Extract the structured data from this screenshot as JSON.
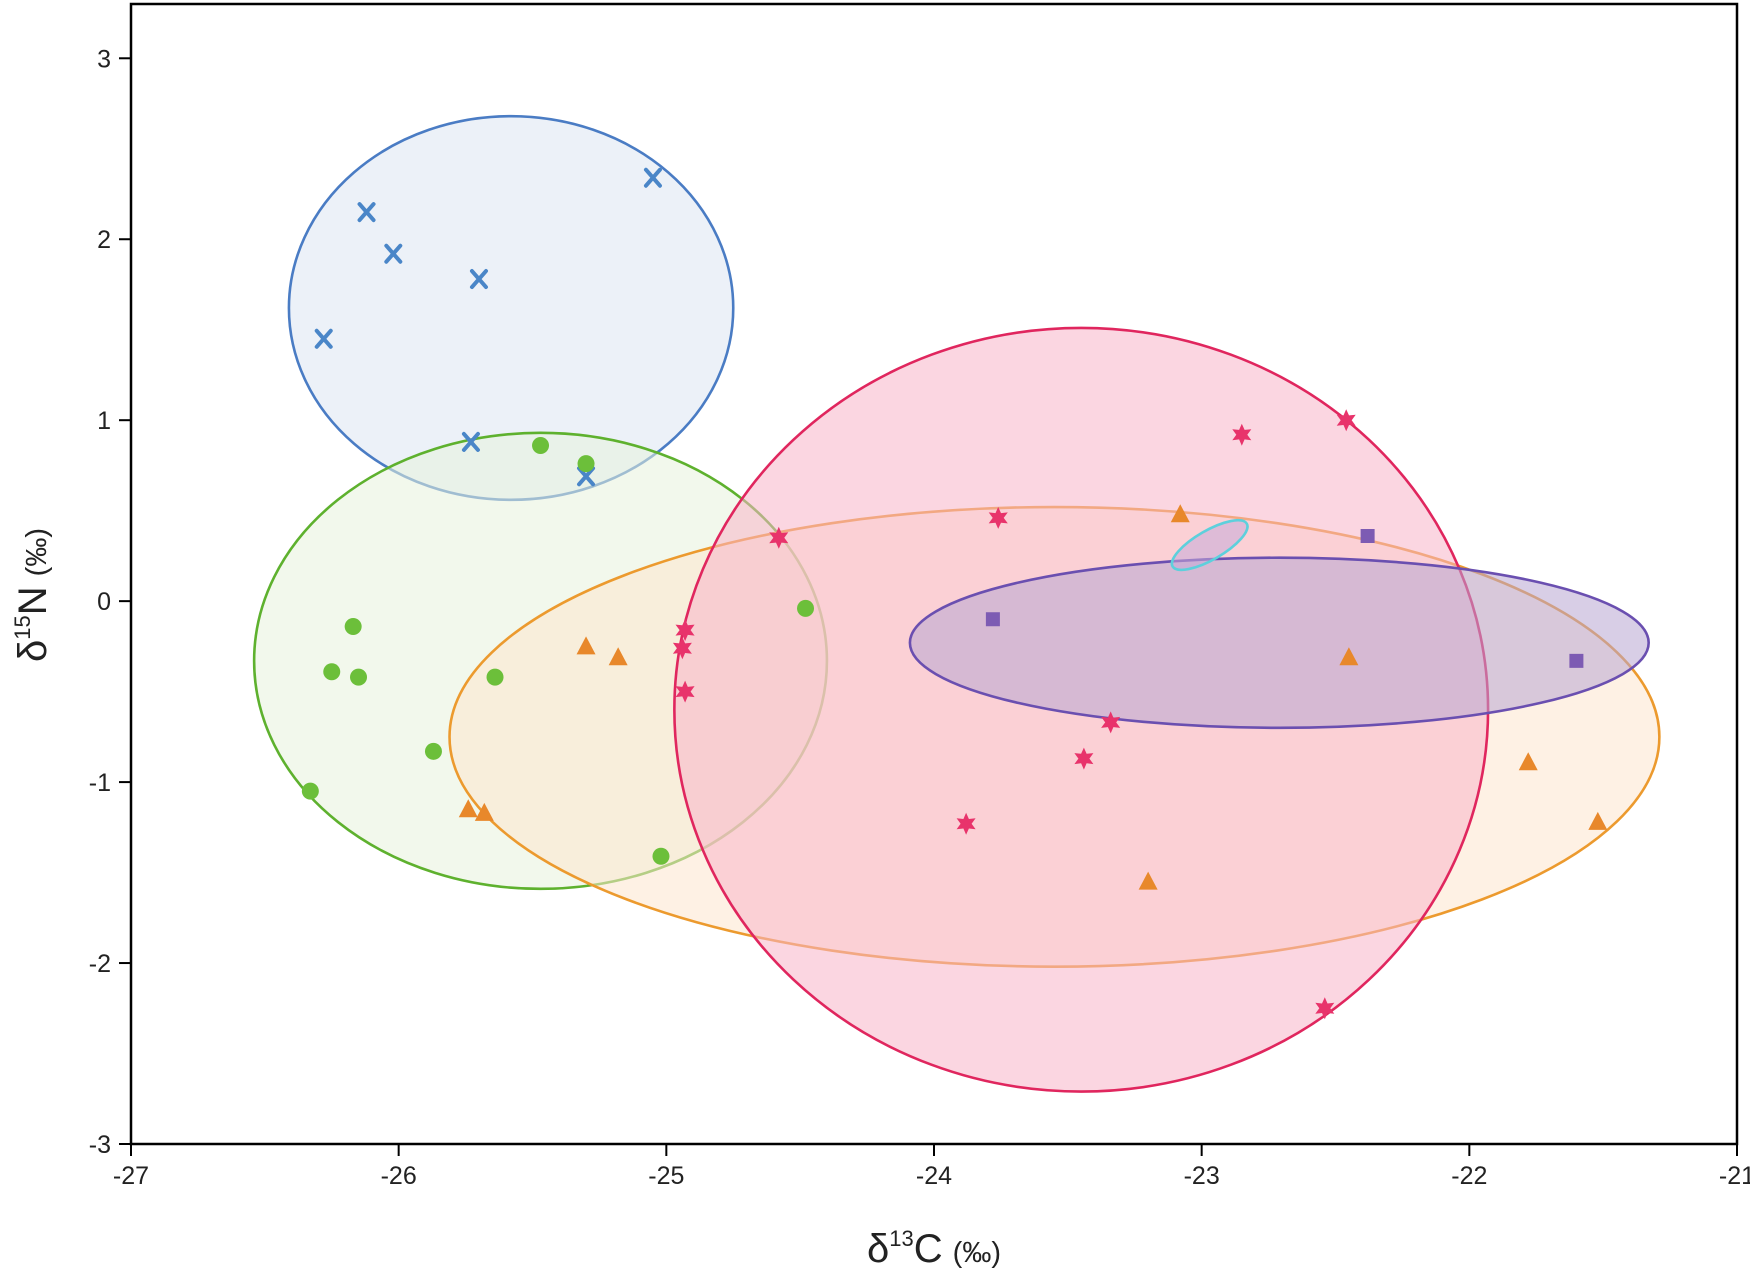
{
  "chart_data": {
    "type": "scatter",
    "title": "",
    "xlabel": {
      "symbol": "δ",
      "isotope": "13",
      "element": "C",
      "unit": "(‰)"
    },
    "ylabel": {
      "symbol": "δ",
      "isotope": "15",
      "element": "N",
      "unit": "(‰)"
    },
    "xlim": [
      -27,
      -21
    ],
    "ylim": [
      -3,
      3.3
    ],
    "xticks": [
      -27,
      -26,
      -25,
      -24,
      -23,
      -22,
      -21
    ],
    "yticks": [
      -3,
      -2,
      -1,
      0,
      1,
      2,
      3
    ],
    "xtick_labels": [
      "-27",
      "-26",
      "-25",
      "-24",
      "-23",
      "-22",
      "-21"
    ],
    "ytick_labels": [
      "-3",
      "-2",
      "-1",
      "0",
      "1",
      "2",
      "3"
    ],
    "grid": false,
    "series": [
      {
        "marker": "cross",
        "color": "#4a86c8",
        "points": [
          [
            -26.28,
            1.45
          ],
          [
            -26.12,
            2.15
          ],
          [
            -26.02,
            1.92
          ],
          [
            -25.7,
            1.78
          ],
          [
            -25.05,
            2.34
          ],
          [
            -25.73,
            0.88
          ],
          [
            -25.3,
            0.69
          ]
        ],
        "ellipse": {
          "cx": -25.58,
          "cy": 1.62,
          "rx": 0.83,
          "ry": 1.06,
          "angle": 0,
          "stroke": "#4a7cc4",
          "fill": "#dde6f3"
        }
      },
      {
        "marker": "circle",
        "color": "#6cbf3a",
        "points": [
          [
            -25.47,
            0.86
          ],
          [
            -25.3,
            0.76
          ],
          [
            -24.48,
            -0.04
          ],
          [
            -26.17,
            -0.14
          ],
          [
            -26.25,
            -0.39
          ],
          [
            -26.15,
            -0.42
          ],
          [
            -25.64,
            -0.42
          ],
          [
            -25.87,
            -0.83
          ],
          [
            -26.33,
            -1.05
          ],
          [
            -25.02,
            -1.41
          ]
        ],
        "ellipse": {
          "cx": -25.47,
          "cy": -0.33,
          "rx": 1.07,
          "ry": 1.26,
          "angle": 0,
          "stroke": "#5eb12e",
          "fill": "#e7f2dc"
        }
      },
      {
        "marker": "triangle",
        "color": "#e8882b",
        "points": [
          [
            -25.3,
            -0.25
          ],
          [
            -25.18,
            -0.31
          ],
          [
            -25.74,
            -1.15
          ],
          [
            -25.68,
            -1.17
          ],
          [
            -23.08,
            0.48
          ],
          [
            -22.45,
            -0.31
          ],
          [
            -21.78,
            -0.89
          ],
          [
            -21.52,
            -1.22
          ],
          [
            -23.2,
            -1.55
          ]
        ],
        "ellipse": {
          "cx": -23.55,
          "cy": -0.75,
          "rx": 2.26,
          "ry": 1.27,
          "angle": 0,
          "stroke": "#ec9a2e",
          "fill": "#fde5cd"
        }
      },
      {
        "marker": "star",
        "color": "#e8336b",
        "points": [
          [
            -24.58,
            0.35
          ],
          [
            -24.93,
            -0.16
          ],
          [
            -24.94,
            -0.26
          ],
          [
            -24.93,
            -0.5
          ],
          [
            -23.76,
            0.46
          ],
          [
            -22.85,
            0.92
          ],
          [
            -22.46,
            1.0
          ],
          [
            -23.34,
            -0.67
          ],
          [
            -23.44,
            -0.87
          ],
          [
            -23.88,
            -1.23
          ],
          [
            -22.54,
            -2.25
          ]
        ],
        "ellipse": {
          "cx": -23.45,
          "cy": -0.6,
          "rx": 1.52,
          "ry": 2.11,
          "angle": 0,
          "stroke": "#e0265e",
          "fill": "#f7b4c8"
        }
      },
      {
        "marker": "square",
        "color": "#7d5bb3",
        "points": [
          [
            -23.78,
            -0.1
          ],
          [
            -22.38,
            0.36
          ],
          [
            -21.6,
            -0.33
          ]
        ],
        "ellipse": {
          "cx": -22.71,
          "cy": -0.23,
          "rx": 1.38,
          "ry": 0.47,
          "angle": 0,
          "stroke": "#6a4fb0",
          "fill": "#b8a6d2"
        }
      },
      {
        "marker": "none",
        "color": "#5dd0dc",
        "points": [],
        "ellipse": {
          "cx": -22.97,
          "cy": 0.31,
          "rx": 0.16,
          "ry": 0.08,
          "angle": -30,
          "stroke": "#5dd0dc",
          "fill": "#c7a9d8"
        }
      }
    ]
  }
}
